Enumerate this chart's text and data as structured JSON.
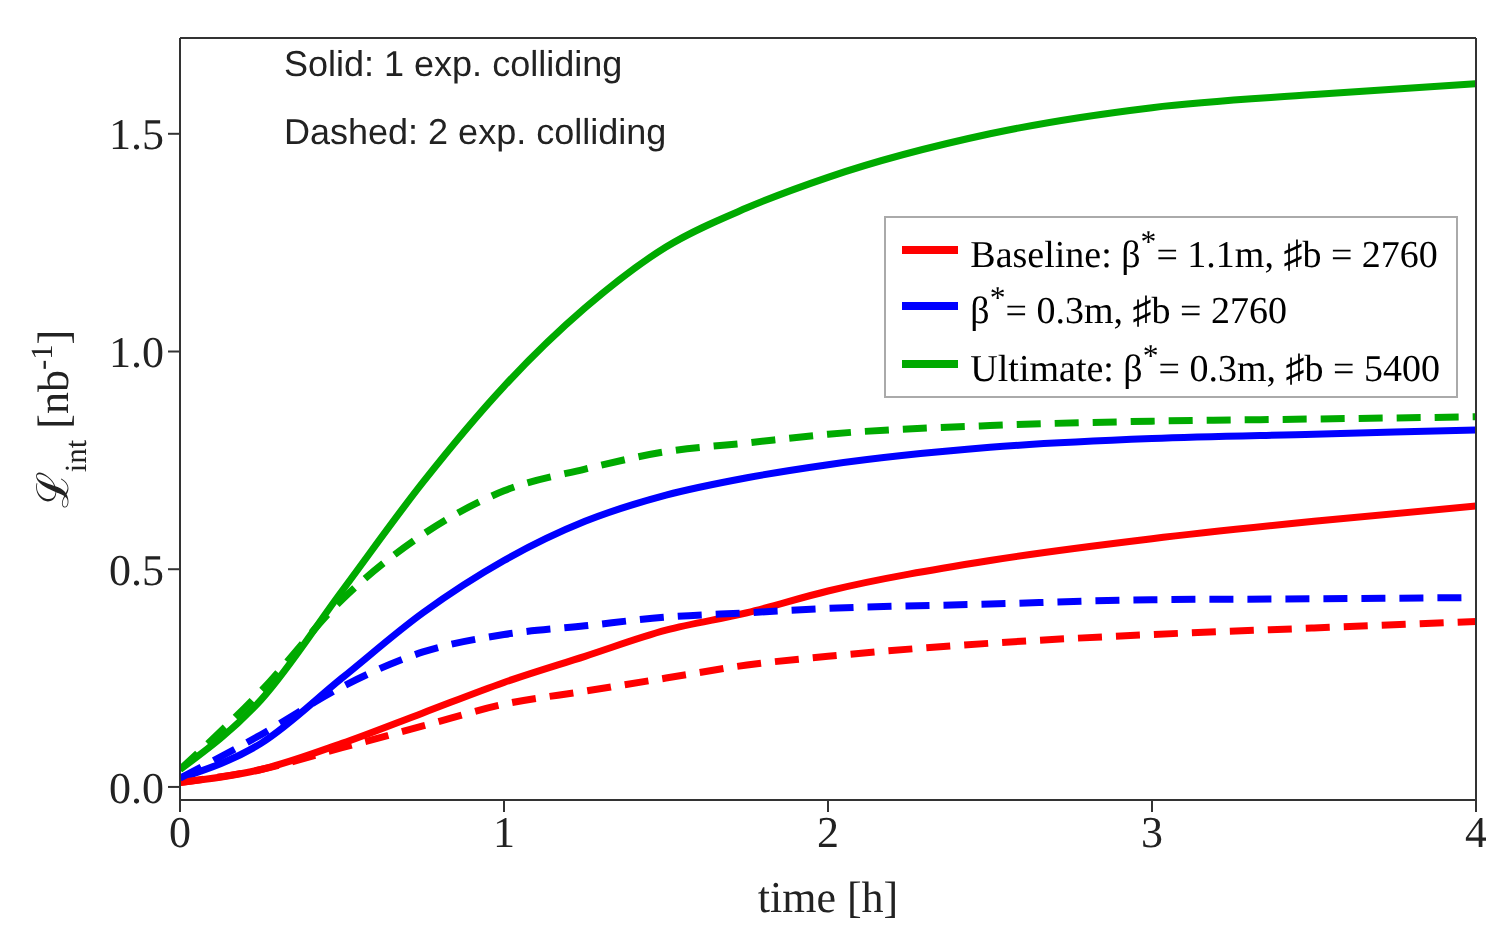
{
  "chart_data": {
    "type": "line",
    "xlabel": "time [h]",
    "ylabel": "ℒ$_{int}$ [nb$^{-1}$]",
    "annotations": [
      "Solid: 1 exp. colliding",
      "Dashed: 2 exp. colliding"
    ],
    "x": [
      0,
      0.25,
      0.5,
      0.75,
      1,
      1.25,
      1.5,
      1.75,
      2,
      2.5,
      3,
      3.5,
      4
    ],
    "series": [
      {
        "name": "Baseline: β$^{*}$= 1.1m, ♯b = 2760",
        "color": "#ff0000",
        "line_style": "solid",
        "values": [
          0.01,
          0.04,
          0.1,
          0.17,
          0.24,
          0.3,
          0.36,
          0.4,
          0.45,
          0.52,
          0.57,
          0.61,
          0.645
        ]
      },
      {
        "name": "β$^{*}$= 0.3m, ♯b = 2760",
        "color": "#0000ff",
        "line_style": "solid",
        "values": [
          0.02,
          0.1,
          0.25,
          0.4,
          0.52,
          0.61,
          0.67,
          0.71,
          0.74,
          0.78,
          0.8,
          0.81,
          0.82
        ]
      },
      {
        "name": "Ultimate: β$^{*}$= 0.3m, ♯b = 5400",
        "color": "#00aa00",
        "line_style": "solid",
        "values": [
          0.04,
          0.2,
          0.45,
          0.7,
          0.92,
          1.1,
          1.24,
          1.33,
          1.4,
          1.5,
          1.56,
          1.59,
          1.615
        ]
      },
      {
        "color": "#ff0000",
        "line_style": "dashed",
        "values": [
          0.01,
          0.04,
          0.09,
          0.14,
          0.19,
          0.22,
          0.25,
          0.28,
          0.3,
          0.33,
          0.35,
          0.365,
          0.38
        ]
      },
      {
        "color": "#0000ff",
        "line_style": "dashed",
        "values": [
          0.02,
          0.12,
          0.23,
          0.31,
          0.35,
          0.37,
          0.39,
          0.4,
          0.41,
          0.42,
          0.43,
          0.432,
          0.435
        ]
      },
      {
        "color": "#00aa00",
        "line_style": "dashed",
        "values": [
          0.04,
          0.22,
          0.43,
          0.58,
          0.68,
          0.73,
          0.77,
          0.79,
          0.81,
          0.83,
          0.84,
          0.845,
          0.85
        ]
      }
    ],
    "xlim": [
      0,
      4
    ],
    "xticks": [
      0,
      1,
      2,
      3,
      4
    ],
    "ylim": [
      -0.03,
      1.72
    ],
    "yticks": [
      {
        "value": 0,
        "label": "0.0"
      },
      {
        "value": 0.5,
        "label": "0.5"
      },
      {
        "value": 1,
        "label": "1.0"
      },
      {
        "value": 1.5,
        "label": "1.5"
      }
    ],
    "grid": false,
    "legend": "top right",
    "marker": "none"
  }
}
